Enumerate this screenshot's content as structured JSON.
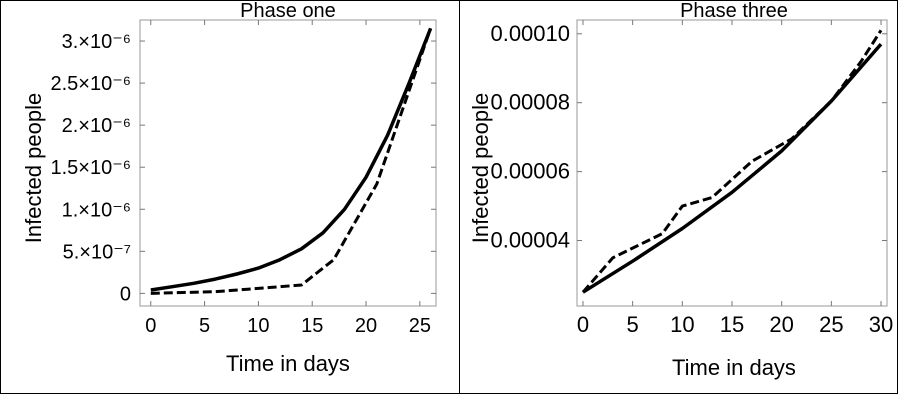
{
  "chart_data": [
    {
      "type": "line",
      "title": "Phase one",
      "xlabel": "Time in days",
      "ylabel": "Infected people",
      "xlim": [
        -1,
        26.5
      ],
      "ylim": [
        -1.5e-07,
        3.25e-06
      ],
      "xticks": [
        0,
        5,
        10,
        15,
        20,
        25
      ],
      "xtick_labels": [
        "0",
        "5",
        "10",
        "15",
        "20",
        "25"
      ],
      "yticks": [
        0,
        5e-07,
        1e-06,
        1.5e-06,
        2e-06,
        2.5e-06,
        3e-06
      ],
      "ytick_labels": [
        "0",
        "5.×10⁻⁷",
        "1.×10⁻⁶",
        "1.5×10⁻⁶",
        "2.×10⁻⁶",
        "2.5×10⁻⁶",
        "3.×10⁻⁶"
      ],
      "grid": false,
      "legend": "none",
      "series": [
        {
          "style": "solid",
          "x": [
            0,
            2,
            4,
            6,
            8,
            10,
            12,
            14,
            16,
            18,
            20,
            22,
            24,
            26
          ],
          "y": [
            4e-08,
            8e-08,
            1.2e-07,
            1.7e-07,
            2.3e-07,
            3e-07,
            4e-07,
            5.3e-07,
            7.2e-07,
            1e-06,
            1.38e-06,
            1.88e-06,
            2.5e-06,
            3.15e-06
          ]
        },
        {
          "style": "dashed",
          "x": [
            0,
            3,
            6,
            9,
            12,
            14,
            17,
            21,
            26
          ],
          "y": [
            0,
            1e-08,
            2e-08,
            5e-08,
            8e-08,
            1e-07,
            4e-07,
            1.3e-06,
            3.15e-06
          ]
        }
      ]
    },
    {
      "type": "line",
      "title": "Phase three",
      "xlabel": "Time in days",
      "ylabel": "Infected people",
      "xlim": [
        -0.6,
        30.6
      ],
      "ylim": [
        2.1e-05,
        0.000104
      ],
      "xticks": [
        0,
        5,
        10,
        15,
        20,
        25,
        30
      ],
      "xtick_labels": [
        "0",
        "5",
        "10",
        "15",
        "20",
        "25",
        "30"
      ],
      "yticks": [
        4e-05,
        6e-05,
        8e-05,
        0.0001
      ],
      "ytick_labels": [
        "0.00004",
        "0.00006",
        "0.00008",
        "0.00010"
      ],
      "grid": false,
      "legend": "none",
      "series": [
        {
          "style": "solid",
          "x": [
            0,
            5,
            10,
            15,
            20,
            25,
            30
          ],
          "y": [
            2.5e-05,
            3.4e-05,
            4.35e-05,
            5.4e-05,
            6.6e-05,
            8.05e-05,
            9.7e-05
          ]
        },
        {
          "style": "dashed",
          "x": [
            0,
            3,
            8,
            10,
            13,
            17,
            21,
            25,
            28,
            30
          ],
          "y": [
            2.5e-05,
            3.5e-05,
            4.2e-05,
            5e-05,
            5.25e-05,
            6.3e-05,
            6.95e-05,
            8.05e-05,
            9.2e-05,
            0.000101
          ]
        }
      ]
    }
  ]
}
